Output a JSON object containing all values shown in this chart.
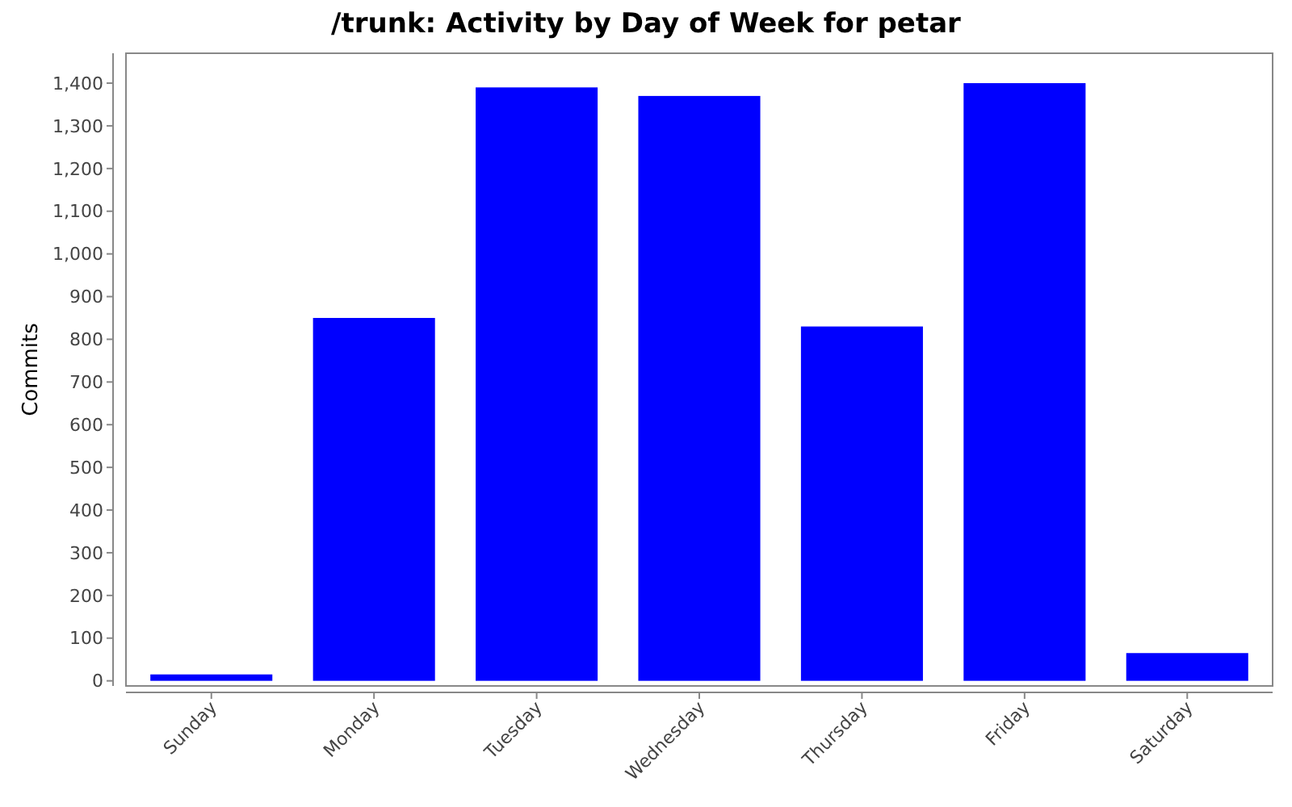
{
  "chart_data": {
    "type": "bar",
    "title": "/trunk: Activity by Day of Week for petar",
    "ylabel": "Commits",
    "categories": [
      "Sunday",
      "Monday",
      "Tuesday",
      "Wednesday",
      "Thursday",
      "Friday",
      "Saturday"
    ],
    "values": [
      15,
      850,
      1390,
      1370,
      830,
      1400,
      65
    ],
    "color": "#0000ff",
    "ylim": [
      -12,
      1470
    ],
    "yticks": [
      0,
      100,
      200,
      300,
      400,
      500,
      600,
      700,
      800,
      900,
      {
        "value": 1000,
        "label": "1,000"
      },
      {
        "value": 1100,
        "label": "1,100"
      },
      {
        "value": 1200,
        "label": "1,200"
      },
      {
        "value": 1300,
        "label": "1,300"
      },
      {
        "value": 1400,
        "label": "1,400"
      }
    ],
    "grid": false
  }
}
